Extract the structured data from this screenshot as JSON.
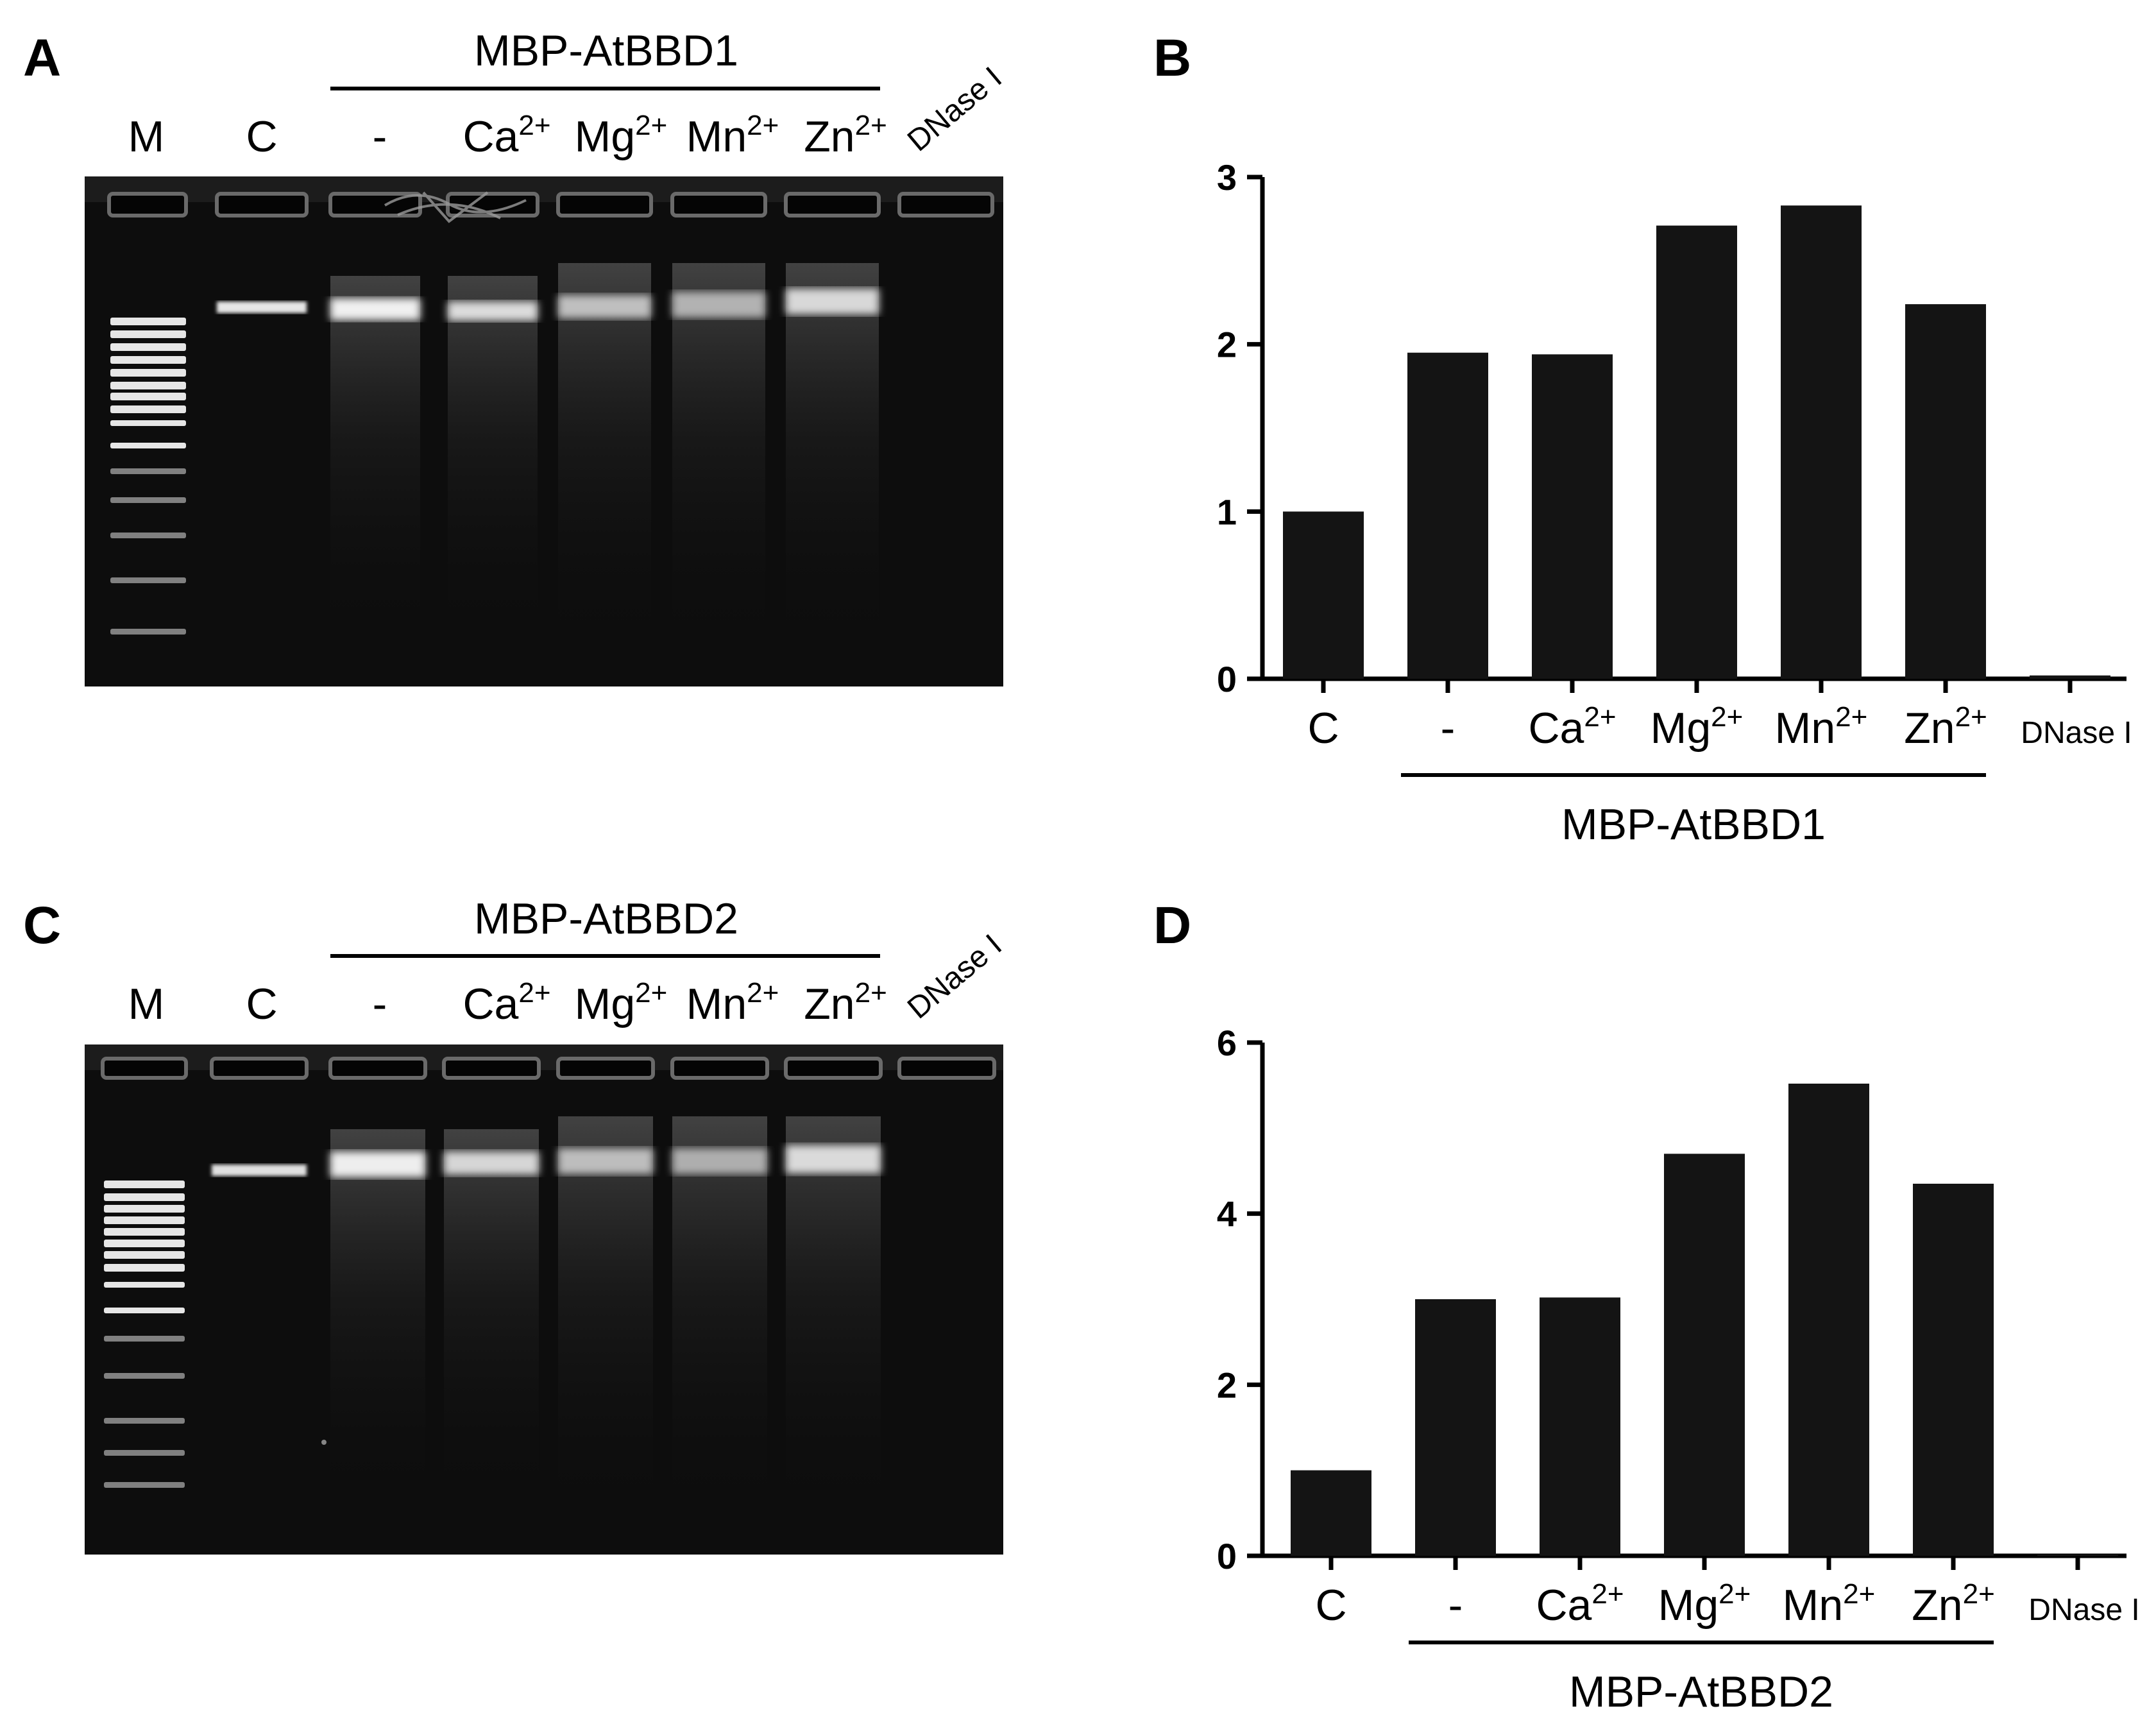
{
  "panels": {
    "A": {
      "letter": "A",
      "protein": "MBP-AtBBD1",
      "lanes": [
        {
          "base": "M",
          "sup": ""
        },
        {
          "base": "C",
          "sup": ""
        },
        {
          "base": "-",
          "sup": ""
        },
        {
          "base": "Ca",
          "sup": "2+"
        },
        {
          "base": "Mg",
          "sup": "2+"
        },
        {
          "base": "Mn",
          "sup": "2+"
        },
        {
          "base": "Zn",
          "sup": "2+"
        }
      ],
      "rotated_lane": "DNase I"
    },
    "B": {
      "letter": "B"
    },
    "C": {
      "letter": "C",
      "protein": "MBP-AtBBD2",
      "lanes": [
        {
          "base": "M",
          "sup": ""
        },
        {
          "base": "C",
          "sup": ""
        },
        {
          "base": "-",
          "sup": ""
        },
        {
          "base": "Ca",
          "sup": "2+"
        },
        {
          "base": "Mg",
          "sup": "2+"
        },
        {
          "base": "Mn",
          "sup": "2+"
        },
        {
          "base": "Zn",
          "sup": "2+"
        }
      ],
      "rotated_lane": "DNase I"
    },
    "D": {
      "letter": "D"
    }
  },
  "chart_data": [
    {
      "panel": "B",
      "type": "bar",
      "categories": [
        {
          "base": "C",
          "sup": ""
        },
        {
          "base": "-",
          "sup": ""
        },
        {
          "base": "Ca",
          "sup": "2+"
        },
        {
          "base": "Mg",
          "sup": "2+"
        },
        {
          "base": "Mn",
          "sup": "2+"
        },
        {
          "base": "Zn",
          "sup": "2+"
        },
        {
          "base": "DNase I",
          "sup": ""
        }
      ],
      "values": [
        1.0,
        1.95,
        1.94,
        2.71,
        2.83,
        2.24,
        0.02
      ],
      "yticks": [
        0,
        1,
        2,
        3
      ],
      "ylim": [
        0,
        3
      ],
      "bracket_label": "MBP-AtBBD1",
      "bar_color": "#141414"
    },
    {
      "panel": "D",
      "type": "bar",
      "categories": [
        {
          "base": "C",
          "sup": ""
        },
        {
          "base": "-",
          "sup": ""
        },
        {
          "base": "Ca",
          "sup": "2+"
        },
        {
          "base": "Mg",
          "sup": "2+"
        },
        {
          "base": "Mn",
          "sup": "2+"
        },
        {
          "base": "Zn",
          "sup": "2+"
        },
        {
          "base": "DNase I",
          "sup": ""
        }
      ],
      "values": [
        1.0,
        3.0,
        3.02,
        4.7,
        5.52,
        4.35,
        0.0
      ],
      "yticks": [
        0,
        2,
        4,
        6
      ],
      "ylim": [
        0,
        6
      ],
      "bracket_label": "MBP-AtBBD2",
      "bar_color": "#141414"
    }
  ]
}
